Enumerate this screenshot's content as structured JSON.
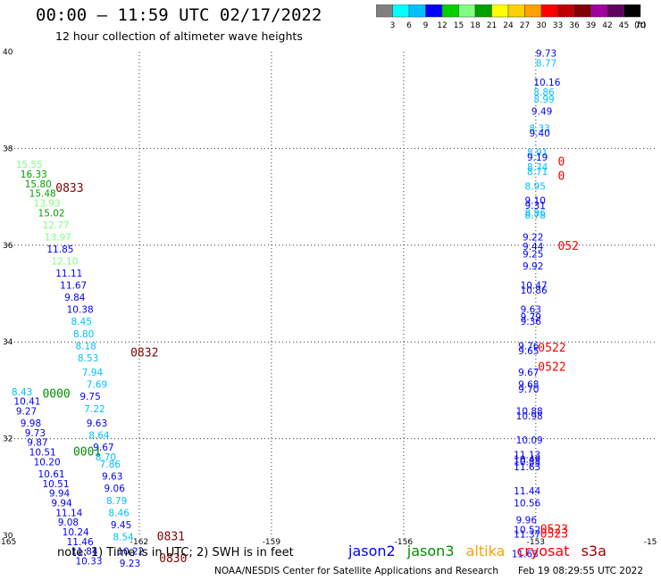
{
  "title": "00:00 – 11:59 UTC 02/17/2022",
  "subtitle": "12 hour collection of altimeter wave heights",
  "colorbar": {
    "unit": "(ft)",
    "labels": [
      "3",
      "6",
      "9",
      "12",
      "15",
      "18",
      "21",
      "24",
      "27",
      "30",
      "33",
      "36",
      "39",
      "42",
      "45",
      "70"
    ],
    "colors": [
      "#808080",
      "#00ffff",
      "#00c0ff",
      "#0000ff",
      "#00d000",
      "#80ff80",
      "#00a000",
      "#ffff00",
      "#ffd000",
      "#ffa000",
      "#ff0000",
      "#c00000",
      "#800000",
      "#a000a0",
      "#600060",
      "#000000"
    ]
  },
  "note": "note: 1) Time is in UTC; 2) SWH is in feet",
  "legend": [
    {
      "name": "jason2",
      "color": "#0000ff"
    },
    {
      "name": "jason3",
      "color": "#009000"
    },
    {
      "name": "altika",
      "color": "#ffa000"
    },
    {
      "name": "cryosat",
      "color": "#ff0000"
    },
    {
      "name": "s3a",
      "color": "#a00000"
    }
  ],
  "credit": "NOAA/NESDIS Center for Satellite Applications and Research",
  "timestamp": "Feb 19 08:29:55 UTC 2022",
  "chart_data": {
    "type": "scatter",
    "x_ticks": [
      "-165",
      "-162",
      "-159",
      "-156",
      "-153",
      "-15"
    ],
    "y_ticks": [
      "40",
      "38",
      "36",
      "34",
      "32",
      "30"
    ],
    "xlim": [
      -165,
      -153.3
    ],
    "ylim": [
      30,
      40
    ],
    "grid": true,
    "points": [
      {
        "lon": -164.8,
        "lat": 37.6,
        "v": "15.55",
        "c": "#80ff80"
      },
      {
        "lon": -164.7,
        "lat": 37.4,
        "v": "16.33",
        "c": "#00a000"
      },
      {
        "lon": -164.6,
        "lat": 37.2,
        "v": "15.80",
        "c": "#00a000"
      },
      {
        "lon": -164.5,
        "lat": 37.0,
        "v": "15.48",
        "c": "#00a000"
      },
      {
        "lon": -164.4,
        "lat": 36.8,
        "v": "13.93",
        "c": "#80ff80"
      },
      {
        "lon": -164.3,
        "lat": 36.6,
        "v": "15.02",
        "c": "#00a000"
      },
      {
        "lon": -164.2,
        "lat": 36.35,
        "v": "12.77",
        "c": "#80ff80"
      },
      {
        "lon": -164.15,
        "lat": 36.1,
        "v": "13.97",
        "c": "#80ff80"
      },
      {
        "lon": -164.1,
        "lat": 35.85,
        "v": "11.85",
        "c": "#0000ff"
      },
      {
        "lon": -164.0,
        "lat": 35.6,
        "v": "12.10",
        "c": "#80ff80"
      },
      {
        "lon": -163.9,
        "lat": 35.35,
        "v": "11.11",
        "c": "#0000ff"
      },
      {
        "lon": -163.8,
        "lat": 35.1,
        "v": "11.67",
        "c": "#0000ff"
      },
      {
        "lon": -163.7,
        "lat": 34.85,
        "v": "9.84",
        "c": "#0000ff"
      },
      {
        "lon": -163.65,
        "lat": 34.6,
        "v": "10.38",
        "c": "#0000ff"
      },
      {
        "lon": -163.55,
        "lat": 34.35,
        "v": "8.45",
        "c": "#00c0ff"
      },
      {
        "lon": -163.5,
        "lat": 34.1,
        "v": "8.80",
        "c": "#00c0ff"
      },
      {
        "lon": -163.45,
        "lat": 33.85,
        "v": "8.18",
        "c": "#00c0ff"
      },
      {
        "lon": -163.4,
        "lat": 33.6,
        "v": "8.53",
        "c": "#00c0ff"
      },
      {
        "lon": -163.3,
        "lat": 33.3,
        "v": "7.94",
        "c": "#00c0ff"
      },
      {
        "lon": -163.2,
        "lat": 33.05,
        "v": "7.69",
        "c": "#00c0ff"
      },
      {
        "lon": -164.9,
        "lat": 32.9,
        "v": "8.43",
        "c": "#00c0ff"
      },
      {
        "lon": -163.35,
        "lat": 32.8,
        "v": "9.75",
        "c": "#0000ff"
      },
      {
        "lon": -164.85,
        "lat": 32.7,
        "v": "10.41",
        "c": "#0000ff"
      },
      {
        "lon": -163.25,
        "lat": 32.55,
        "v": "7.22",
        "c": "#00c0ff"
      },
      {
        "lon": -164.8,
        "lat": 32.5,
        "v": "9.27",
        "c": "#0000ff"
      },
      {
        "lon": -163.2,
        "lat": 32.25,
        "v": "9.63",
        "c": "#0000ff"
      },
      {
        "lon": -164.7,
        "lat": 32.25,
        "v": "9.98",
        "c": "#0000ff"
      },
      {
        "lon": -163.15,
        "lat": 32.0,
        "v": "8.64",
        "c": "#00c0ff"
      },
      {
        "lon": -164.6,
        "lat": 32.05,
        "v": "9.73",
        "c": "#0000ff"
      },
      {
        "lon": -163.05,
        "lat": 31.75,
        "v": "9.67",
        "c": "#0000ff"
      },
      {
        "lon": -164.55,
        "lat": 31.85,
        "v": "9.87",
        "c": "#0000ff"
      },
      {
        "lon": -163.0,
        "lat": 31.55,
        "v": "8.70",
        "c": "#00c0ff"
      },
      {
        "lon": -164.5,
        "lat": 31.65,
        "v": "10.51",
        "c": "#0000ff"
      },
      {
        "lon": -162.9,
        "lat": 31.4,
        "v": "7.86",
        "c": "#00c0ff"
      },
      {
        "lon": -164.4,
        "lat": 31.45,
        "v": "10.20",
        "c": "#0000ff"
      },
      {
        "lon": -164.3,
        "lat": 31.2,
        "v": "10.61",
        "c": "#0000ff"
      },
      {
        "lon": -162.85,
        "lat": 31.15,
        "v": "9.63",
        "c": "#0000ff"
      },
      {
        "lon": -164.2,
        "lat": 31.0,
        "v": "10.51",
        "c": "#0000ff"
      },
      {
        "lon": -162.8,
        "lat": 30.9,
        "v": "9.06",
        "c": "#0000ff"
      },
      {
        "lon": -164.05,
        "lat": 30.8,
        "v": "9.94",
        "c": "#0000ff"
      },
      {
        "lon": -162.75,
        "lat": 30.65,
        "v": "8.79",
        "c": "#00c0ff"
      },
      {
        "lon": -164.0,
        "lat": 30.6,
        "v": "9.94",
        "c": "#0000ff"
      },
      {
        "lon": -162.7,
        "lat": 30.4,
        "v": "8.46",
        "c": "#00c0ff"
      },
      {
        "lon": -163.9,
        "lat": 30.4,
        "v": "11.14",
        "c": "#0000ff"
      },
      {
        "lon": -163.85,
        "lat": 30.2,
        "v": "9.08",
        "c": "#0000ff"
      },
      {
        "lon": -162.65,
        "lat": 30.15,
        "v": "9.45",
        "c": "#0000ff"
      },
      {
        "lon": -163.75,
        "lat": 30.0,
        "v": "10.24",
        "c": "#0000ff"
      },
      {
        "lon": -162.6,
        "lat": 29.9,
        "v": "8.54",
        "c": "#00c0ff"
      },
      {
        "lon": -163.65,
        "lat": 29.8,
        "v": "11.46",
        "c": "#0000ff"
      },
      {
        "lon": -163.55,
        "lat": 29.6,
        "v": "11.84",
        "c": "#0000ff"
      },
      {
        "lon": -162.5,
        "lat": 29.6,
        "v": "10.22",
        "c": "#0000ff"
      },
      {
        "lon": -163.45,
        "lat": 29.4,
        "v": "10.33",
        "c": "#0000ff"
      },
      {
        "lon": -162.45,
        "lat": 29.35,
        "v": "9.23",
        "c": "#0000ff"
      },
      {
        "lon": -153.0,
        "lat": 39.9,
        "v": "9.73",
        "c": "#0000ff"
      },
      {
        "lon": -153.0,
        "lat": 39.7,
        "v": "8.77",
        "c": "#00c0ff"
      },
      {
        "lon": -153.05,
        "lat": 39.3,
        "v": "10.16",
        "c": "#0000ff"
      },
      {
        "lon": -153.05,
        "lat": 39.1,
        "v": "8.86",
        "c": "#00c0ff"
      },
      {
        "lon": -153.05,
        "lat": 38.95,
        "v": "8.99",
        "c": "#00c0ff"
      },
      {
        "lon": -153.1,
        "lat": 38.7,
        "v": "9.49",
        "c": "#0000ff"
      },
      {
        "lon": -153.15,
        "lat": 38.35,
        "v": "8.33",
        "c": "#00c0ff"
      },
      {
        "lon": -153.15,
        "lat": 38.25,
        "v": "9.40",
        "c": "#0000ff"
      },
      {
        "lon": -153.2,
        "lat": 37.85,
        "v": "8.91",
        "c": "#00c0ff"
      },
      {
        "lon": -153.2,
        "lat": 37.75,
        "v": "9.19",
        "c": "#0000ff"
      },
      {
        "lon": -153.2,
        "lat": 37.55,
        "v": "8.74",
        "c": "#00c0ff"
      },
      {
        "lon": -153.2,
        "lat": 37.45,
        "v": "8.71",
        "c": "#00c0ff"
      },
      {
        "lon": -153.25,
        "lat": 37.15,
        "v": "8.95",
        "c": "#00c0ff"
      },
      {
        "lon": -153.25,
        "lat": 36.85,
        "v": "9.10",
        "c": "#0000ff"
      },
      {
        "lon": -153.25,
        "lat": 36.75,
        "v": "9.31",
        "c": "#0000ff"
      },
      {
        "lon": -153.25,
        "lat": 36.6,
        "v": "8.86",
        "c": "#00c0ff"
      },
      {
        "lon": -153.25,
        "lat": 36.55,
        "v": "8.78",
        "c": "#00c0ff"
      },
      {
        "lon": -153.3,
        "lat": 36.1,
        "v": "9.22",
        "c": "#0000ff"
      },
      {
        "lon": -153.3,
        "lat": 35.9,
        "v": "9.44",
        "c": "#0000ff"
      },
      {
        "lon": -153.3,
        "lat": 35.75,
        "v": "9.25",
        "c": "#0000ff"
      },
      {
        "lon": -153.3,
        "lat": 35.5,
        "v": "9.92",
        "c": "#0000ff"
      },
      {
        "lon": -153.35,
        "lat": 35.1,
        "v": "10.47",
        "c": "#0000ff"
      },
      {
        "lon": -153.35,
        "lat": 35.0,
        "v": "10.86",
        "c": "#0000ff"
      },
      {
        "lon": -153.35,
        "lat": 34.6,
        "v": "9.63",
        "c": "#0000ff"
      },
      {
        "lon": -153.35,
        "lat": 34.45,
        "v": "9.79",
        "c": "#0000ff"
      },
      {
        "lon": -153.35,
        "lat": 34.35,
        "v": "9.36",
        "c": "#0000ff"
      },
      {
        "lon": -153.4,
        "lat": 33.85,
        "v": "9.76",
        "c": "#0000ff"
      },
      {
        "lon": -153.4,
        "lat": 33.75,
        "v": "9.65",
        "c": "#0000ff"
      },
      {
        "lon": -153.4,
        "lat": 33.3,
        "v": "9.67",
        "c": "#0000ff"
      },
      {
        "lon": -153.4,
        "lat": 33.05,
        "v": "9.68",
        "c": "#0000ff"
      },
      {
        "lon": -153.4,
        "lat": 32.95,
        "v": "9.70",
        "c": "#0000ff"
      },
      {
        "lon": -153.45,
        "lat": 32.5,
        "v": "10.88",
        "c": "#0000ff"
      },
      {
        "lon": -153.45,
        "lat": 32.4,
        "v": "10.98",
        "c": "#0000ff"
      },
      {
        "lon": -153.45,
        "lat": 31.9,
        "v": "10.09",
        "c": "#0000ff"
      },
      {
        "lon": -153.5,
        "lat": 31.6,
        "v": "11.13",
        "c": "#0000ff"
      },
      {
        "lon": -153.5,
        "lat": 31.5,
        "v": "10.49",
        "c": "#0000ff"
      },
      {
        "lon": -153.5,
        "lat": 31.45,
        "v": "10.85",
        "c": "#0000ff"
      },
      {
        "lon": -153.5,
        "lat": 31.35,
        "v": "11.63",
        "c": "#0000ff"
      },
      {
        "lon": -153.5,
        "lat": 30.85,
        "v": "11.44",
        "c": "#0000ff"
      },
      {
        "lon": -153.5,
        "lat": 30.6,
        "v": "10.56",
        "c": "#0000ff"
      },
      {
        "lon": -153.45,
        "lat": 30.25,
        "v": "9.96",
        "c": "#0000ff"
      },
      {
        "lon": -153.5,
        "lat": 30.05,
        "v": "10.52",
        "c": "#0000ff"
      },
      {
        "lon": -153.5,
        "lat": 29.95,
        "v": "11.37",
        "c": "#0000ff"
      },
      {
        "lon": -153.55,
        "lat": 29.55,
        "v": "11.63",
        "c": "#0000ff"
      }
    ],
    "times": [
      {
        "lon": -163.9,
        "lat": 37.1,
        "v": "0833",
        "c": "#800000"
      },
      {
        "lon": -162.2,
        "lat": 33.7,
        "v": "0832",
        "c": "#800000"
      },
      {
        "lon": -164.2,
        "lat": 32.85,
        "v": "0000",
        "c": "#009000"
      },
      {
        "lon": -163.5,
        "lat": 31.65,
        "v": "0001",
        "c": "#009000"
      },
      {
        "lon": -161.6,
        "lat": 29.9,
        "v": "0831",
        "c": "#800000"
      },
      {
        "lon": -161.55,
        "lat": 29.45,
        "v": "0830",
        "c": "#800000"
      },
      {
        "lon": -152.5,
        "lat": 37.65,
        "v": "0",
        "c": "#ff0000"
      },
      {
        "lon": -152.5,
        "lat": 37.35,
        "v": "0",
        "c": "#ff0000"
      },
      {
        "lon": -152.5,
        "lat": 35.9,
        "v": "052",
        "c": "#ff0000"
      },
      {
        "lon": -152.95,
        "lat": 33.8,
        "v": "0522",
        "c": "#ff0000"
      },
      {
        "lon": -152.95,
        "lat": 33.4,
        "v": "0522",
        "c": "#ff0000"
      },
      {
        "lon": -152.9,
        "lat": 30.05,
        "v": "0523",
        "c": "#ff0000"
      },
      {
        "lon": -152.9,
        "lat": 29.95,
        "v": "0523",
        "c": "#ff0000"
      }
    ]
  }
}
